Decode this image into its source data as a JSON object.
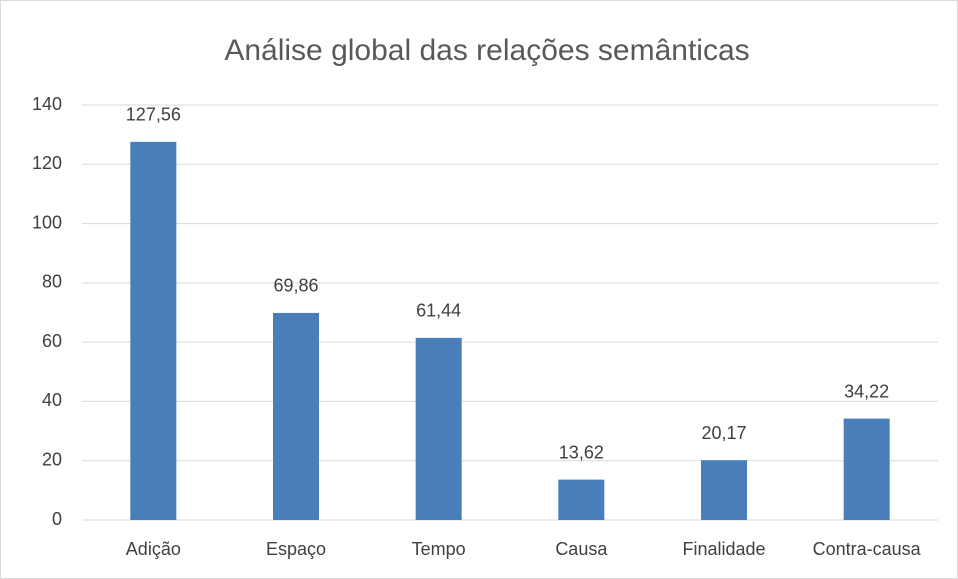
{
  "chart_data": {
    "type": "bar",
    "title": "Análise global das relações semânticas",
    "categories": [
      "Adição",
      "Espaço",
      "Tempo",
      "Causa",
      "Finalidade",
      "Contra-causa"
    ],
    "values": [
      127.56,
      69.86,
      61.44,
      13.62,
      20.17,
      34.22
    ],
    "value_labels": [
      "127,56",
      "69,86",
      "61,44",
      "13,62",
      "20,17",
      "34,22"
    ],
    "color": "#4a7ebb",
    "ylim": [
      0,
      140
    ],
    "yticks": [
      0,
      20,
      40,
      60,
      80,
      100,
      120,
      140
    ],
    "grid": true
  }
}
